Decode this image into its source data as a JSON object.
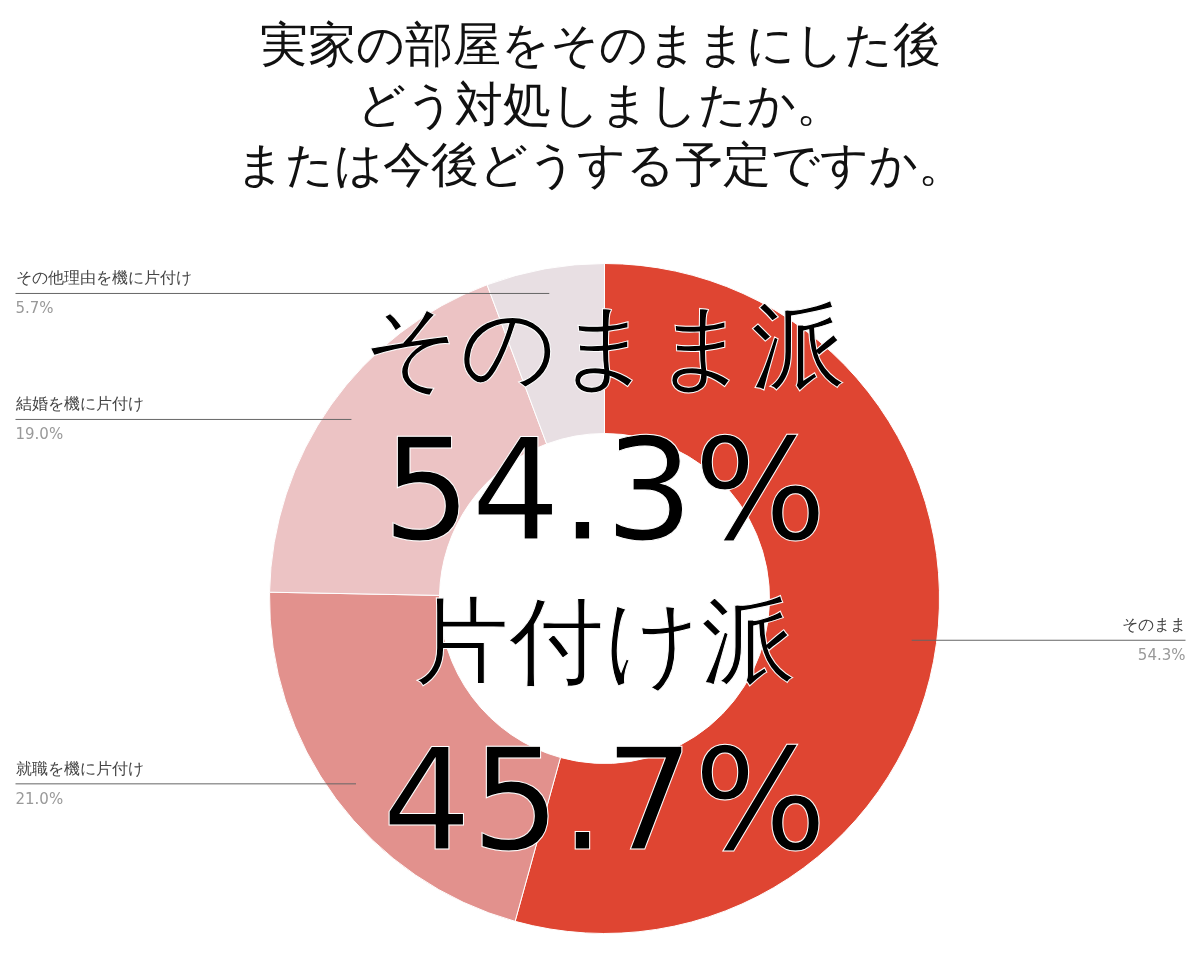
{
  "chart_data": {
    "type": "donut",
    "title": "実家の部屋をそのままにした後どう対処しましたか。",
    "subtitle": "または今後どうする予定ですか。",
    "categories": [
      "そのまま",
      "就職を機に片付け",
      "結婚を機に片付け",
      "その他理由を機に片付け"
    ],
    "values": [
      54.3,
      21.0,
      19.0,
      5.7
    ],
    "value_labels": [
      "54.3%",
      "21.0%",
      "19.0%",
      "5.7%"
    ],
    "colors": [
      "#df4532",
      "#e2918d",
      "#ecc3c4",
      "#e8dfe3"
    ],
    "annotations": [
      "そのまま派",
      "54.3%",
      "片付け派",
      "45.7%"
    ]
  }
}
